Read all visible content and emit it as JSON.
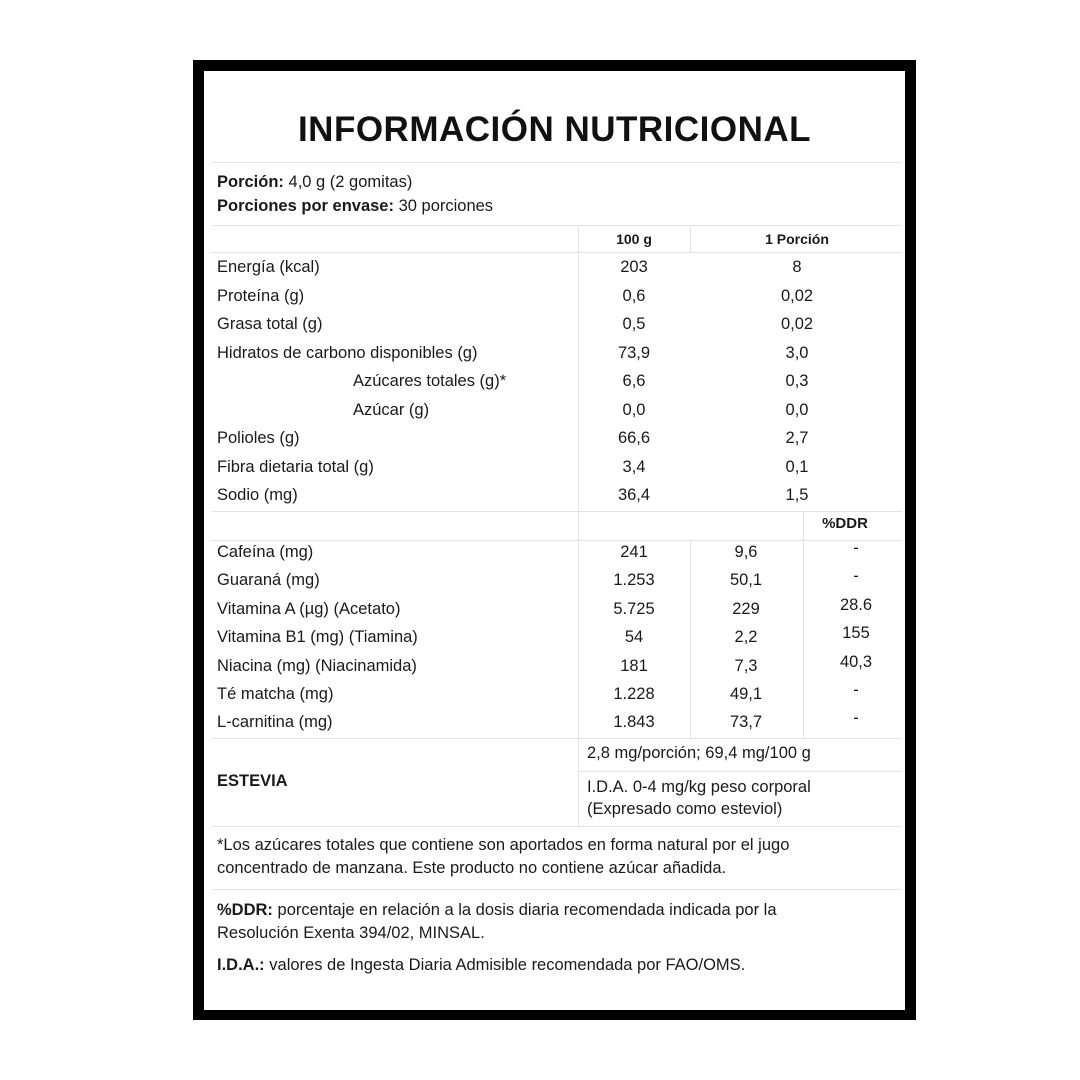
{
  "title": "INFORMACIÓN NUTRICIONAL",
  "serving": {
    "label": "Porción:",
    "value": "4,0 g (2 gomitas)"
  },
  "servings_per_pack": {
    "label": "Porciones por envase:",
    "value": "30 porciones"
  },
  "columns": {
    "per100": "100 g",
    "perServing": "1 Porción",
    "ddr": "%DDR"
  },
  "nutrients": [
    {
      "name": "Energía (kcal)",
      "per100": "203",
      "perServing": "8"
    },
    {
      "name": "Proteína (g)",
      "per100": "0,6",
      "perServing": "0,02"
    },
    {
      "name": "Grasa total (g)",
      "per100": "0,5",
      "perServing": "0,02"
    },
    {
      "name": "Hidratos de carbono disponibles (g)",
      "per100": "73,9",
      "perServing": "3,0"
    },
    {
      "name": "Azúcares totales (g)*",
      "per100": "6,6",
      "perServing": "0,3",
      "indent": true
    },
    {
      "name": "Azúcar (g)",
      "per100": "0,0",
      "perServing": "0,0",
      "indent": true
    },
    {
      "name": "Polioles (g)",
      "per100": "66,6",
      "perServing": "2,7"
    },
    {
      "name": "Fibra dietaria total (g)",
      "per100": "3,4",
      "perServing": "0,1"
    },
    {
      "name": "Sodio (mg)",
      "per100": "36,4",
      "perServing": "1,5"
    }
  ],
  "actives": [
    {
      "name": "Cafeína (mg)",
      "per100": "241",
      "perServing": "9,6",
      "ddr": "-"
    },
    {
      "name": "Guaraná (mg)",
      "per100": "1.253",
      "perServing": "50,1",
      "ddr": "-"
    },
    {
      "name": "Vitamina A (µg) (Acetato)",
      "per100": "5.725",
      "perServing": "229",
      "ddr": "28.6"
    },
    {
      "name": "Vitamina B1 (mg) (Tiamina)",
      "per100": "54",
      "perServing": "2,2",
      "ddr": "155"
    },
    {
      "name": "Niacina (mg) (Niacinamida)",
      "per100": "181",
      "perServing": "7,3",
      "ddr": "40,3"
    },
    {
      "name": "Té matcha (mg)",
      "per100": "1.228",
      "perServing": "49,1",
      "ddr": "-"
    },
    {
      "name": "L-carnitina (mg)",
      "per100": "1.843",
      "perServing": "73,7",
      "ddr": "-"
    }
  ],
  "stevia": {
    "label": "ESTEVIA",
    "amount": "2,8 mg/porción; 69,4 mg/100 g",
    "ida_line1": "I.D.A. 0-4 mg/kg peso corporal",
    "ida_line2": "(Expresado como esteviol)"
  },
  "footnote": {
    "line1": "*Los azúcares totales que contiene son aportados en forma natural por el jugo",
    "line2": "concentrado de manzana. Este producto no contiene azúcar añadida."
  },
  "ddr_note": {
    "label": "%DDR:",
    "line1": "porcentaje en relación a la dosis diaria recomendada indicada por la",
    "line2": "Resolución Exenta 394/02, MINSAL."
  },
  "ida_note": {
    "label": "I.D.A.:",
    "text": "valores de Ingesta Diaria Admisible recomendada por FAO/OMS."
  }
}
